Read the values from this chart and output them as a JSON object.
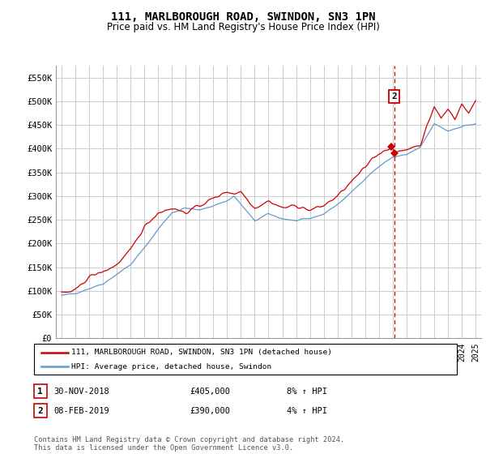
{
  "title": "111, MARLBOROUGH ROAD, SWINDON, SN3 1PN",
  "subtitle": "Price paid vs. HM Land Registry's House Price Index (HPI)",
  "title_fontsize": 10,
  "subtitle_fontsize": 8.5,
  "background_color": "#ffffff",
  "plot_bg_color": "#ffffff",
  "grid_color": "#cccccc",
  "hpi_color": "#6699cc",
  "price_color": "#cc0000",
  "dashed_line_color": "#cc0000",
  "annotation_box_color": "#cc0000",
  "ylim": [
    0,
    575000
  ],
  "yticks": [
    0,
    50000,
    100000,
    150000,
    200000,
    250000,
    300000,
    350000,
    400000,
    450000,
    500000,
    550000
  ],
  "ytick_labels": [
    "£0",
    "£50K",
    "£100K",
    "£150K",
    "£200K",
    "£250K",
    "£300K",
    "£350K",
    "£400K",
    "£450K",
    "£500K",
    "£550K"
  ],
  "legend_label_price": "111, MARLBOROUGH ROAD, SWINDON, SN3 1PN (detached house)",
  "legend_label_hpi": "HPI: Average price, detached house, Swindon",
  "annotation1_num": "1",
  "annotation1_date": "30-NOV-2018",
  "annotation1_price": "£405,000",
  "annotation1_hpi": "8% ↑ HPI",
  "annotation2_num": "2",
  "annotation2_date": "08-FEB-2019",
  "annotation2_price": "£390,000",
  "annotation2_hpi": "4% ↑ HPI",
  "footer": "Contains HM Land Registry data © Crown copyright and database right 2024.\nThis data is licensed under the Open Government Licence v3.0.",
  "sale1_x": 2018.917,
  "sale1_y": 405000,
  "sale2_x": 2019.1,
  "sale2_y": 390000,
  "xlim_left": 1994.6,
  "xlim_right": 2025.4
}
